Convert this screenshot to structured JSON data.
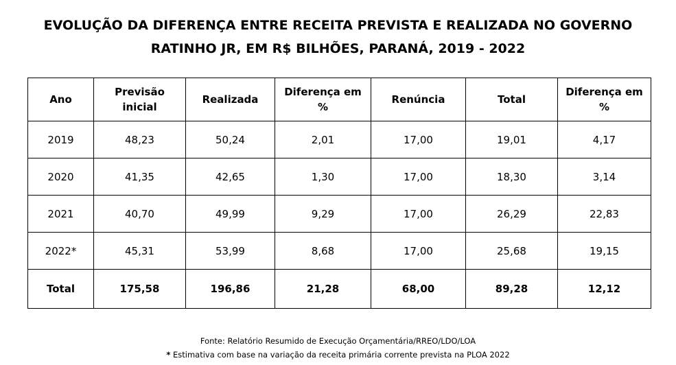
{
  "title": {
    "line1": "EVOLUÇÃO DA DIFERENÇA ENTRE RECEITA PREVISTA E REALIZADA NO GOVERNO",
    "line2": "RATINHO JR, EM R$ BILHÕES, PARANÁ, 2019 - 2022"
  },
  "table": {
    "headers": [
      "Ano",
      "Previsão inicial",
      "Realizada",
      "Diferença em %",
      "Renúncia",
      "Total",
      "Diferença em %"
    ],
    "rows": [
      [
        "2019",
        "48,23",
        "50,24",
        "2,01",
        "17,00",
        "19,01",
        "4,17"
      ],
      [
        "2020",
        "41,35",
        "42,65",
        "1,30",
        "17,00",
        "18,30",
        "3,14"
      ],
      [
        "2021",
        "40,70",
        "49,99",
        "9,29",
        "17,00",
        "26,29",
        "22,83"
      ],
      [
        "2022*",
        "45,31",
        "53,99",
        "8,68",
        "17,00",
        "25,68",
        "19,15"
      ]
    ],
    "total": [
      "Total",
      "175,58",
      "196,86",
      "21,28",
      "68,00",
      "89,28",
      "12,12"
    ]
  },
  "notes": {
    "source": "Fonte: Relatório Resumido de Execução Orçamentária/RREO/LDO/LOA",
    "asterisk": "*",
    "estimate": " Estimativa com base na variação da receita primária corrente prevista na PLOA 2022"
  }
}
